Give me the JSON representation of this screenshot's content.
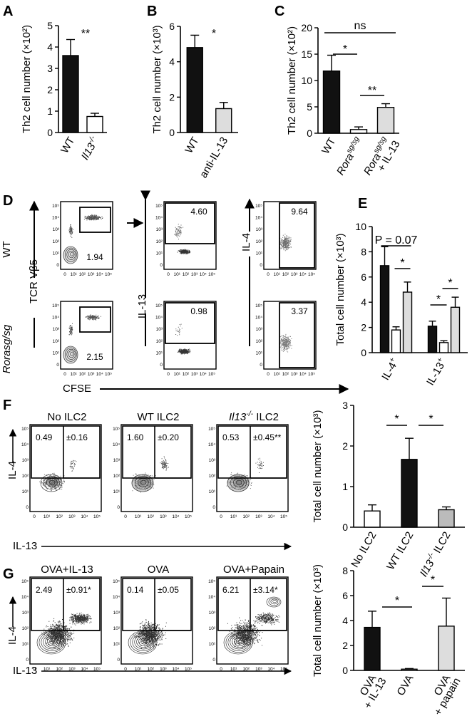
{
  "panel_letters": [
    "A",
    "B",
    "C",
    "D",
    "E",
    "F",
    "G"
  ],
  "chart_data": [
    {
      "id": "A",
      "type": "bar",
      "ylabel": "Th2 cell number (×10²)",
      "yticks": [
        0,
        1,
        2,
        3,
        4,
        5
      ],
      "ylim": [
        0,
        5
      ],
      "categories": [
        "WT",
        "Il13-/-"
      ],
      "values": [
        3.6,
        0.75
      ],
      "errors": [
        0.75,
        0.15
      ],
      "fills": [
        "#111111",
        "#ffffff"
      ],
      "significance": [
        {
          "from": 0,
          "to": 1,
          "label": "**"
        }
      ]
    },
    {
      "id": "B",
      "type": "bar",
      "ylabel": "Th2 cell number (×10³)",
      "yticks": [
        0,
        2,
        4,
        6
      ],
      "ylim": [
        0,
        6
      ],
      "categories": [
        "WT",
        "anti-IL-13"
      ],
      "values": [
        4.8,
        1.35
      ],
      "errors": [
        0.7,
        0.35
      ],
      "fills": [
        "#111111",
        "#dddddd"
      ],
      "significance": [
        {
          "from": 0,
          "to": 1,
          "label": "*"
        }
      ]
    },
    {
      "id": "C",
      "type": "bar",
      "ylabel": "Th2 cell number (×10²)",
      "yticks": [
        0,
        5,
        10,
        15,
        20
      ],
      "ylim": [
        0,
        20
      ],
      "categories": [
        "WT",
        "Rorasg/sg",
        "Rorasg/sg + IL-13"
      ],
      "values": [
        11.8,
        0.7,
        4.9
      ],
      "errors": [
        3.0,
        0.5,
        0.7
      ],
      "fills": [
        "#111111",
        "#ffffff",
        "#dddddd"
      ],
      "significance": [
        {
          "from": 0,
          "to": 2,
          "label": "ns"
        },
        {
          "from": 0,
          "to": 1,
          "label": "*"
        },
        {
          "from": 1,
          "to": 2,
          "label": "**"
        }
      ]
    },
    {
      "id": "E",
      "type": "bar",
      "ylabel": "Total cell number (×10³)",
      "yticks": [
        0,
        2,
        4,
        6,
        8,
        10
      ],
      "ylim": [
        0,
        10
      ],
      "groups": [
        "IL-4+",
        "IL-13+"
      ],
      "series": [
        {
          "values": [
            6.9,
            2.1
          ],
          "errors": [
            1.5,
            0.4
          ],
          "fill": "#111111"
        },
        {
          "values": [
            1.8,
            0.8
          ],
          "errors": [
            0.25,
            0.15
          ],
          "fill": "#ffffff"
        },
        {
          "values": [
            4.8,
            3.6
          ],
          "errors": [
            0.8,
            0.8
          ],
          "fill": "#dddddd"
        }
      ],
      "significance": [
        {
          "label": "P = 0.07"
        },
        {
          "label": "*"
        },
        {
          "label": "*"
        },
        {
          "label": "*"
        }
      ]
    },
    {
      "id": "F",
      "type": "bar",
      "ylabel": "Total cell number (×10³)",
      "yticks": [
        0,
        1,
        2,
        3
      ],
      "ylim": [
        0,
        3
      ],
      "categories": [
        "No ILC2",
        "WT ILC2",
        "Il13-/- ILC2"
      ],
      "values": [
        0.4,
        1.67,
        0.43
      ],
      "errors": [
        0.15,
        0.52,
        0.07
      ],
      "fills": [
        "#ffffff",
        "#111111",
        "#bbbbbb"
      ],
      "significance": [
        {
          "from": 0,
          "to": 1,
          "label": "*"
        },
        {
          "from": 1,
          "to": 2,
          "label": "*"
        }
      ]
    },
    {
      "id": "G",
      "type": "bar",
      "ylabel": "Total cell number (×10³)",
      "yticks": [
        0,
        2,
        4,
        6,
        8
      ],
      "ylim": [
        0,
        8
      ],
      "categories": [
        "OVA + IL-13",
        "OVA",
        "OVA + papain"
      ],
      "values": [
        3.45,
        0.1,
        3.55
      ],
      "errors": [
        1.3,
        0.05,
        2.25
      ],
      "fills": [
        "#111111",
        "#ffffff",
        "#dddddd"
      ],
      "significance": [
        {
          "from": 0,
          "to": 1,
          "label": "*"
        },
        {
          "from": 1,
          "to": 2,
          "label": "*"
        }
      ]
    }
  ],
  "flow": {
    "D": {
      "row_labels": [
        "WT",
        "Rorasg/sg"
      ],
      "y_axis_cols": [
        "TCR Vβ5",
        "IL-13",
        "IL-4"
      ],
      "x_axis": "CFSE",
      "gate_values": [
        [
          "1.94",
          "4.60",
          "9.64"
        ],
        [
          "2.15",
          "0.98",
          "3.37"
        ]
      ]
    },
    "F": {
      "titles": [
        "No ILC2",
        "WT ILC2",
        "Il13-/- ILC2"
      ],
      "gate_values": [
        "0.49",
        "±0.16",
        "1.60",
        "±0.20",
        "0.53",
        "±0.45**"
      ],
      "ylabel": "IL-4",
      "xlabel": "IL-13"
    },
    "G": {
      "titles": [
        "OVA+IL-13",
        "OVA",
        "OVA+Papain"
      ],
      "gate_values": [
        "2.49",
        "±0.91*",
        "0.14",
        "±0.05",
        "6.21",
        "±3.14*"
      ],
      "ylabel": "IL-4",
      "xlabel": "IL-13"
    },
    "log_ticks": [
      "0",
      "10¹",
      "10²",
      "10³",
      "10⁴",
      "10⁵"
    ]
  }
}
